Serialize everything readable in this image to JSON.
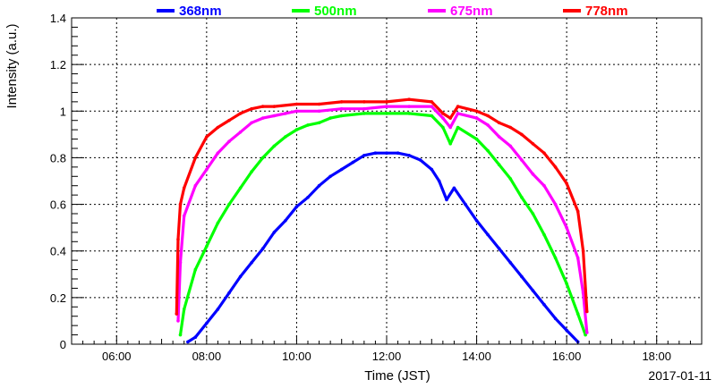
{
  "chart_data": {
    "type": "scatter",
    "xlabel": "Time (JST)",
    "ylabel": "Intensity (a.u.)",
    "date_label": "2017-01-11",
    "xlim": [
      "05:00",
      "19:00"
    ],
    "ylim": [
      0,
      1.4
    ],
    "x_ticks": [
      "06:00",
      "08:00",
      "10:00",
      "12:00",
      "14:00",
      "16:00",
      "18:00"
    ],
    "y_ticks": [
      "0",
      "0.2",
      "0.4",
      "0.6",
      "0.8",
      "1",
      "1.2",
      "1.4"
    ],
    "grid": true,
    "legend_position": "top",
    "series": [
      {
        "name": "368nm",
        "color": "#0000ff",
        "points": [
          [
            "07:35",
            0.01
          ],
          [
            "07:45",
            0.03
          ],
          [
            "08:00",
            0.09
          ],
          [
            "08:15",
            0.15
          ],
          [
            "08:30",
            0.22
          ],
          [
            "08:45",
            0.29
          ],
          [
            "09:00",
            0.35
          ],
          [
            "09:15",
            0.41
          ],
          [
            "09:30",
            0.48
          ],
          [
            "09:45",
            0.53
          ],
          [
            "10:00",
            0.59
          ],
          [
            "10:15",
            0.63
          ],
          [
            "10:30",
            0.68
          ],
          [
            "10:45",
            0.72
          ],
          [
            "11:00",
            0.75
          ],
          [
            "11:15",
            0.78
          ],
          [
            "11:30",
            0.81
          ],
          [
            "11:45",
            0.82
          ],
          [
            "12:00",
            0.82
          ],
          [
            "12:15",
            0.82
          ],
          [
            "12:30",
            0.81
          ],
          [
            "12:45",
            0.79
          ],
          [
            "13:00",
            0.75
          ],
          [
            "13:10",
            0.7
          ],
          [
            "13:20",
            0.62
          ],
          [
            "13:30",
            0.67
          ],
          [
            "13:45",
            0.6
          ],
          [
            "14:00",
            0.53
          ],
          [
            "14:15",
            0.47
          ],
          [
            "14:30",
            0.41
          ],
          [
            "14:45",
            0.35
          ],
          [
            "15:00",
            0.29
          ],
          [
            "15:15",
            0.23
          ],
          [
            "15:30",
            0.17
          ],
          [
            "15:45",
            0.11
          ],
          [
            "16:00",
            0.06
          ],
          [
            "16:15",
            0.01
          ]
        ]
      },
      {
        "name": "500nm",
        "color": "#00ff00",
        "points": [
          [
            "07:25",
            0.04
          ],
          [
            "07:30",
            0.15
          ],
          [
            "07:45",
            0.32
          ],
          [
            "08:00",
            0.42
          ],
          [
            "08:15",
            0.52
          ],
          [
            "08:30",
            0.6
          ],
          [
            "08:45",
            0.67
          ],
          [
            "09:00",
            0.74
          ],
          [
            "09:15",
            0.8
          ],
          [
            "09:30",
            0.85
          ],
          [
            "09:45",
            0.89
          ],
          [
            "10:00",
            0.92
          ],
          [
            "10:15",
            0.94
          ],
          [
            "10:30",
            0.95
          ],
          [
            "10:45",
            0.97
          ],
          [
            "11:00",
            0.98
          ],
          [
            "11:30",
            0.99
          ],
          [
            "12:00",
            0.99
          ],
          [
            "12:30",
            0.99
          ],
          [
            "13:00",
            0.98
          ],
          [
            "13:15",
            0.93
          ],
          [
            "13:25",
            0.86
          ],
          [
            "13:35",
            0.93
          ],
          [
            "14:00",
            0.88
          ],
          [
            "14:15",
            0.83
          ],
          [
            "14:30",
            0.77
          ],
          [
            "14:45",
            0.71
          ],
          [
            "15:00",
            0.63
          ],
          [
            "15:15",
            0.56
          ],
          [
            "15:30",
            0.47
          ],
          [
            "15:45",
            0.37
          ],
          [
            "16:00",
            0.26
          ],
          [
            "16:15",
            0.13
          ],
          [
            "16:25",
            0.04
          ]
        ]
      },
      {
        "name": "675nm",
        "color": "#ff00ff",
        "points": [
          [
            "07:22",
            0.1
          ],
          [
            "07:25",
            0.35
          ],
          [
            "07:30",
            0.55
          ],
          [
            "07:45",
            0.68
          ],
          [
            "08:00",
            0.75
          ],
          [
            "08:15",
            0.82
          ],
          [
            "08:30",
            0.87
          ],
          [
            "08:45",
            0.91
          ],
          [
            "09:00",
            0.95
          ],
          [
            "09:15",
            0.97
          ],
          [
            "09:30",
            0.98
          ],
          [
            "09:45",
            0.99
          ],
          [
            "10:00",
            1.0
          ],
          [
            "10:30",
            1.0
          ],
          [
            "11:00",
            1.01
          ],
          [
            "11:30",
            1.01
          ],
          [
            "12:00",
            1.02
          ],
          [
            "12:30",
            1.02
          ],
          [
            "13:00",
            1.02
          ],
          [
            "13:15",
            0.97
          ],
          [
            "13:25",
            0.93
          ],
          [
            "13:35",
            0.99
          ],
          [
            "14:00",
            0.97
          ],
          [
            "14:15",
            0.94
          ],
          [
            "14:30",
            0.89
          ],
          [
            "14:45",
            0.85
          ],
          [
            "15:00",
            0.79
          ],
          [
            "15:15",
            0.73
          ],
          [
            "15:30",
            0.68
          ],
          [
            "15:45",
            0.6
          ],
          [
            "16:00",
            0.5
          ],
          [
            "16:15",
            0.37
          ],
          [
            "16:22",
            0.22
          ],
          [
            "16:27",
            0.05
          ]
        ]
      },
      {
        "name": "778nm",
        "color": "#ff0000",
        "points": [
          [
            "07:20",
            0.13
          ],
          [
            "07:22",
            0.45
          ],
          [
            "07:25",
            0.6
          ],
          [
            "07:30",
            0.67
          ],
          [
            "07:45",
            0.8
          ],
          [
            "08:00",
            0.89
          ],
          [
            "08:15",
            0.93
          ],
          [
            "08:30",
            0.96
          ],
          [
            "08:45",
            0.99
          ],
          [
            "09:00",
            1.01
          ],
          [
            "09:15",
            1.02
          ],
          [
            "09:30",
            1.02
          ],
          [
            "10:00",
            1.03
          ],
          [
            "10:30",
            1.03
          ],
          [
            "11:00",
            1.04
          ],
          [
            "11:30",
            1.04
          ],
          [
            "12:00",
            1.04
          ],
          [
            "12:30",
            1.05
          ],
          [
            "13:00",
            1.04
          ],
          [
            "13:15",
            0.99
          ],
          [
            "13:25",
            0.97
          ],
          [
            "13:35",
            1.02
          ],
          [
            "14:00",
            1.0
          ],
          [
            "14:15",
            0.98
          ],
          [
            "14:30",
            0.95
          ],
          [
            "14:45",
            0.93
          ],
          [
            "15:00",
            0.9
          ],
          [
            "15:15",
            0.86
          ],
          [
            "15:30",
            0.82
          ],
          [
            "15:45",
            0.76
          ],
          [
            "16:00",
            0.69
          ],
          [
            "16:15",
            0.57
          ],
          [
            "16:22",
            0.4
          ],
          [
            "16:27",
            0.14
          ]
        ]
      }
    ]
  }
}
